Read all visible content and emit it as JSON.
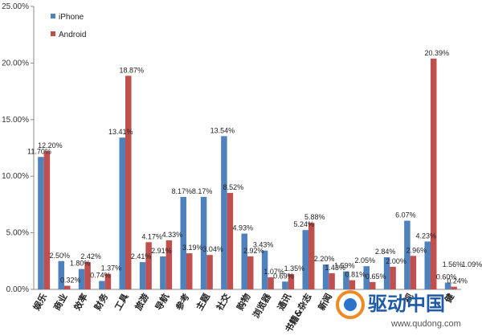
{
  "chart_data": {
    "type": "bar",
    "ylim": [
      0,
      25
    ],
    "yticks": [
      0,
      5,
      10,
      15,
      20,
      25
    ],
    "ytick_labels": [
      "0.00%",
      "5.00%",
      "10.00%",
      "15.00%",
      "20.00%",
      "25.00%"
    ],
    "legend_position": "top-left",
    "grid": false,
    "colors": {
      "iphone": "#4f81bd",
      "android": "#c0504d"
    },
    "categories": [
      "娱乐",
      "商业",
      "效率",
      "财务",
      "工具",
      "旅游",
      "导航",
      "参考",
      "主题",
      "社交",
      "购物",
      "浏览器",
      "通讯",
      "书籍&杂志",
      "新闻",
      "",
      "",
      "",
      "视",
      "",
      "健"
    ],
    "series": [
      {
        "name": "iPhone",
        "values": [
          11.7,
          2.5,
          1.8,
          0.74,
          13.41,
          2.41,
          2.91,
          8.17,
          8.17,
          13.54,
          4.93,
          3.43,
          0.69,
          5.24,
          2.2,
          1.59,
          2.05,
          2.84,
          6.07,
          4.23,
          0.6
        ],
        "labels": [
          "11.70%",
          "2.50%",
          "1.80%",
          "0.74%",
          "13.41%",
          "2.41%",
          "2.91%",
          "8.17%",
          "8.17%",
          "13.54%",
          "4.93%",
          "3.43%",
          "0.69%",
          "5.24%",
          "2.20%",
          "1.59%",
          "2.05%",
          "2.84%",
          "6.07%",
          "4.23%",
          "0.60%"
        ]
      },
      {
        "name": "Android",
        "values": [
          12.2,
          0.32,
          2.42,
          1.37,
          18.87,
          4.17,
          4.33,
          3.19,
          3.04,
          8.52,
          2.92,
          1.07,
          1.35,
          5.88,
          1.43,
          0.81,
          0.65,
          2.0,
          2.96,
          20.39,
          0.24
        ],
        "labels": [
          "12.20%",
          "0.32%",
          "2.42%",
          "1.37%",
          "18.87%",
          "4.17%",
          "4.33%",
          "3.19%",
          "3.04%",
          "8.52%",
          "2.92%",
          "1.07%",
          "1.35%",
          "5.88%",
          "1.43%",
          "0.81%",
          "0.65%",
          "2.00%",
          "2.96%",
          "20.39%",
          "0.24%"
        ]
      }
    ],
    "extra_labels": [
      "1.56%",
      "1.09%"
    ]
  },
  "watermark": {
    "brand": "驱动中国",
    "url": "www.qudong.com"
  }
}
